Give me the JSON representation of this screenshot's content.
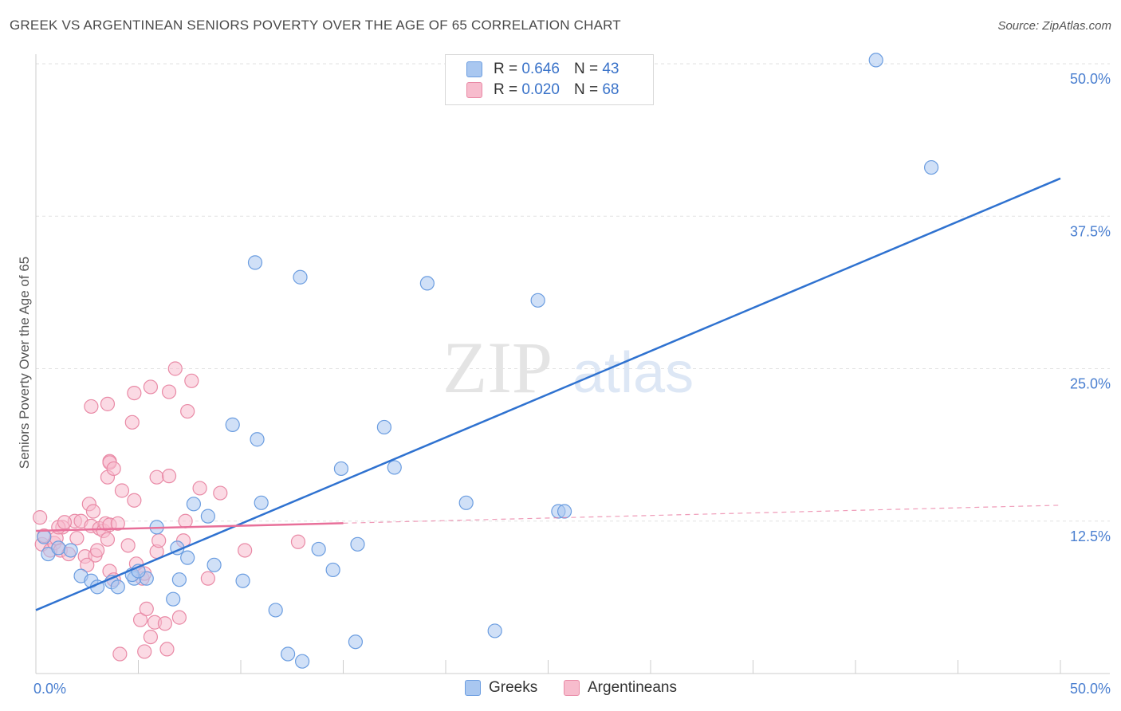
{
  "title": "GREEK VS ARGENTINEAN SENIORS POVERTY OVER THE AGE OF 65 CORRELATION CHART",
  "source": "Source: ZipAtlas.com",
  "watermark": {
    "zip": "ZIP",
    "atlas": "atlas"
  },
  "legend": {
    "r_label": "R =",
    "n_label": "N =",
    "rows": [
      {
        "r": "0.646",
        "n": "43",
        "color": "#a9c7f0",
        "border": "#6b9de0"
      },
      {
        "r": "0.020",
        "n": "68",
        "color": "#f7bccd",
        "border": "#e98aa6"
      }
    ]
  },
  "bottom_legend": [
    {
      "label": "Greeks",
      "color": "#a9c7f0",
      "border": "#6b9de0"
    },
    {
      "label": "Argentineans",
      "color": "#f7bccd",
      "border": "#e98aa6"
    }
  ],
  "chart_data": {
    "type": "scatter",
    "title": "GREEK VS ARGENTINEAN SENIORS POVERTY OVER THE AGE OF 65 CORRELATION CHART",
    "xlabel": "",
    "ylabel": "Seniors Poverty Over the Age of 65",
    "xlim": [
      0,
      50
    ],
    "ylim": [
      0,
      50
    ],
    "x_tick_labels": [
      "0.0%",
      "50.0%"
    ],
    "y_ticks": [
      12.5,
      25.0,
      37.5,
      50.0
    ],
    "y_tick_labels": [
      "12.5%",
      "25.0%",
      "37.5%",
      "50.0%"
    ],
    "grid": true,
    "series": [
      {
        "name": "Greeks",
        "color": "#6b9de0",
        "fill": "#a9c7f0",
        "line_color": "#2f72d0",
        "trend": {
          "x": [
            0,
            50
          ],
          "y": [
            5.2,
            40.6
          ],
          "dashed_from": null
        },
        "points": [
          [
            0.4,
            11.2
          ],
          [
            0.6,
            9.8
          ],
          [
            1.1,
            10.3
          ],
          [
            2.2,
            8.0
          ],
          [
            1.7,
            10.1
          ],
          [
            2.7,
            7.6
          ],
          [
            3.0,
            7.1
          ],
          [
            3.7,
            7.5
          ],
          [
            4.0,
            7.1
          ],
          [
            4.8,
            7.8
          ],
          [
            4.7,
            8.1
          ],
          [
            5.4,
            7.8
          ],
          [
            5.0,
            8.4
          ],
          [
            6.7,
            6.1
          ],
          [
            5.9,
            12.0
          ],
          [
            7.0,
            7.7
          ],
          [
            6.9,
            10.3
          ],
          [
            7.4,
            9.5
          ],
          [
            7.7,
            13.9
          ],
          [
            8.4,
            12.9
          ],
          [
            8.7,
            8.9
          ],
          [
            9.6,
            20.4
          ],
          [
            10.1,
            7.6
          ],
          [
            10.8,
            19.2
          ],
          [
            11.0,
            14.0
          ],
          [
            10.7,
            33.7
          ],
          [
            11.7,
            5.2
          ],
          [
            12.3,
            1.6
          ],
          [
            12.9,
            32.5
          ],
          [
            13.0,
            1.0
          ],
          [
            13.8,
            10.2
          ],
          [
            14.5,
            8.5
          ],
          [
            14.9,
            16.8
          ],
          [
            15.7,
            10.6
          ],
          [
            15.6,
            2.6
          ],
          [
            17.0,
            20.2
          ],
          [
            17.5,
            16.9
          ],
          [
            19.1,
            32.0
          ],
          [
            21.0,
            14.0
          ],
          [
            22.4,
            3.5
          ],
          [
            24.5,
            30.6
          ],
          [
            25.5,
            13.3
          ],
          [
            25.8,
            13.3
          ],
          [
            41.0,
            50.3
          ],
          [
            43.7,
            41.5
          ]
        ]
      },
      {
        "name": "Argentineans",
        "color": "#e98aa6",
        "fill": "#f7bccd",
        "line_color": "#e8709a",
        "trend": {
          "x": [
            0,
            50
          ],
          "y": [
            11.7,
            13.8
          ],
          "dashed_from": 15.0
        },
        "points": [
          [
            0.2,
            12.8
          ],
          [
            0.3,
            10.6
          ],
          [
            0.4,
            11.3
          ],
          [
            0.7,
            10.1
          ],
          [
            0.9,
            10.7
          ],
          [
            1.2,
            10.1
          ],
          [
            1.0,
            11.1
          ],
          [
            1.3,
            12.0
          ],
          [
            1.6,
            9.8
          ],
          [
            1.1,
            12.0
          ],
          [
            1.9,
            12.5
          ],
          [
            1.4,
            12.4
          ],
          [
            2.0,
            11.1
          ],
          [
            2.4,
            9.6
          ],
          [
            2.2,
            12.5
          ],
          [
            2.6,
            13.9
          ],
          [
            2.8,
            13.3
          ],
          [
            2.9,
            9.7
          ],
          [
            3.0,
            10.1
          ],
          [
            2.5,
            8.9
          ],
          [
            2.7,
            12.1
          ],
          [
            3.1,
            11.9
          ],
          [
            3.3,
            11.7
          ],
          [
            3.4,
            12.3
          ],
          [
            3.5,
            11.0
          ],
          [
            2.7,
            21.9
          ],
          [
            3.5,
            22.1
          ],
          [
            3.6,
            12.2
          ],
          [
            3.6,
            8.4
          ],
          [
            3.8,
            7.7
          ],
          [
            3.6,
            17.4
          ],
          [
            3.5,
            16.1
          ],
          [
            3.6,
            17.3
          ],
          [
            3.8,
            16.8
          ],
          [
            4.0,
            12.3
          ],
          [
            4.2,
            15.0
          ],
          [
            4.5,
            10.5
          ],
          [
            4.7,
            20.6
          ],
          [
            4.8,
            23.0
          ],
          [
            4.8,
            14.2
          ],
          [
            4.9,
            9.0
          ],
          [
            5.2,
            7.8
          ],
          [
            5.3,
            8.2
          ],
          [
            5.8,
            4.2
          ],
          [
            5.1,
            4.4
          ],
          [
            5.4,
            5.3
          ],
          [
            5.6,
            23.5
          ],
          [
            5.6,
            3.0
          ],
          [
            5.9,
            10.0
          ],
          [
            5.9,
            16.1
          ],
          [
            6.0,
            10.9
          ],
          [
            6.3,
            4.1
          ],
          [
            6.5,
            23.1
          ],
          [
            6.5,
            16.2
          ],
          [
            6.8,
            25.0
          ],
          [
            7.0,
            4.6
          ],
          [
            7.2,
            10.9
          ],
          [
            7.3,
            12.5
          ],
          [
            7.4,
            21.5
          ],
          [
            7.6,
            24.0
          ],
          [
            8.0,
            15.2
          ],
          [
            8.4,
            7.8
          ],
          [
            9.0,
            14.8
          ],
          [
            10.2,
            10.1
          ],
          [
            12.8,
            10.8
          ],
          [
            4.1,
            1.6
          ],
          [
            5.3,
            1.8
          ],
          [
            6.4,
            2.0
          ]
        ]
      }
    ]
  }
}
